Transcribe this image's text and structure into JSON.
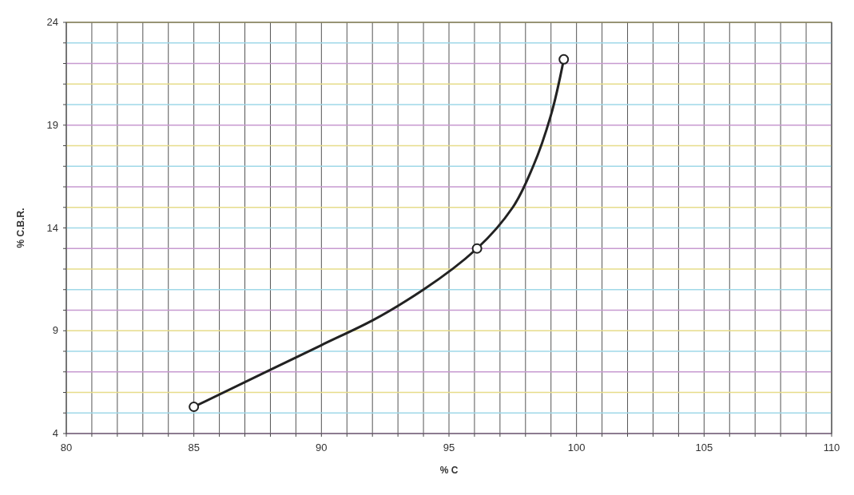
{
  "chart_data": {
    "type": "line",
    "xlabel": "% C",
    "ylabel": "% C.B.R.",
    "xlim": [
      80,
      110
    ],
    "xticks": [
      80,
      {
        "value": 81,
        "label": null
      },
      {
        "value": 82,
        "label": null
      },
      {
        "value": 83,
        "label": null
      },
      {
        "value": 84,
        "label": null
      },
      85,
      {
        "value": 86,
        "label": null
      },
      {
        "value": 87,
        "label": null
      },
      {
        "value": 88,
        "label": null
      },
      {
        "value": 89,
        "label": null
      },
      90,
      {
        "value": 91,
        "label": null
      },
      {
        "value": 92,
        "label": null
      },
      {
        "value": 93,
        "label": null
      },
      {
        "value": 94,
        "label": null
      },
      95,
      {
        "value": 96,
        "label": null
      },
      {
        "value": 97,
        "label": null
      },
      {
        "value": 98,
        "label": null
      },
      {
        "value": 99,
        "label": null
      },
      100,
      {
        "value": 101,
        "label": null
      },
      {
        "value": 102,
        "label": null
      },
      {
        "value": 103,
        "label": null
      },
      {
        "value": 104,
        "label": null
      },
      105,
      {
        "value": 106,
        "label": null
      },
      {
        "value": 107,
        "label": null
      },
      {
        "value": 108,
        "label": null
      },
      {
        "value": 109,
        "label": null
      },
      110
    ],
    "ylim": [
      4,
      24
    ],
    "yticks": [
      4,
      {
        "value": 5,
        "label": null
      },
      {
        "value": 6,
        "label": null
      },
      {
        "value": 7,
        "label": null
      },
      {
        "value": 8,
        "label": null
      },
      9,
      {
        "value": 10,
        "label": null
      },
      {
        "value": 11,
        "label": null
      },
      {
        "value": 12,
        "label": null
      },
      {
        "value": 13,
        "label": null
      },
      14,
      {
        "value": 15,
        "label": null
      },
      {
        "value": 16,
        "label": null
      },
      {
        "value": 17,
        "label": null
      },
      {
        "value": 18,
        "label": null
      },
      19,
      {
        "value": 20,
        "label": null
      },
      {
        "value": 21,
        "label": null
      },
      {
        "value": 22,
        "label": null
      },
      {
        "value": 23,
        "label": null
      },
      24
    ],
    "grid": true,
    "line_style": "solid",
    "series": [
      {
        "color": "#222222",
        "marker": "none",
        "x": [
          85,
          88,
          90,
          92,
          94,
          96.1,
          97.5,
          98.3,
          99,
          99.5
        ],
        "values": [
          5.3,
          7.1,
          8.3,
          9.5,
          11.0,
          13.0,
          15.0,
          17.0,
          19.5,
          22.2
        ]
      },
      {
        "type": "scatter",
        "color": "#222222",
        "marker": "circle",
        "x": [
          85,
          96.1,
          99.5
        ],
        "values": [
          5.3,
          13.0,
          22.2
        ]
      }
    ]
  }
}
